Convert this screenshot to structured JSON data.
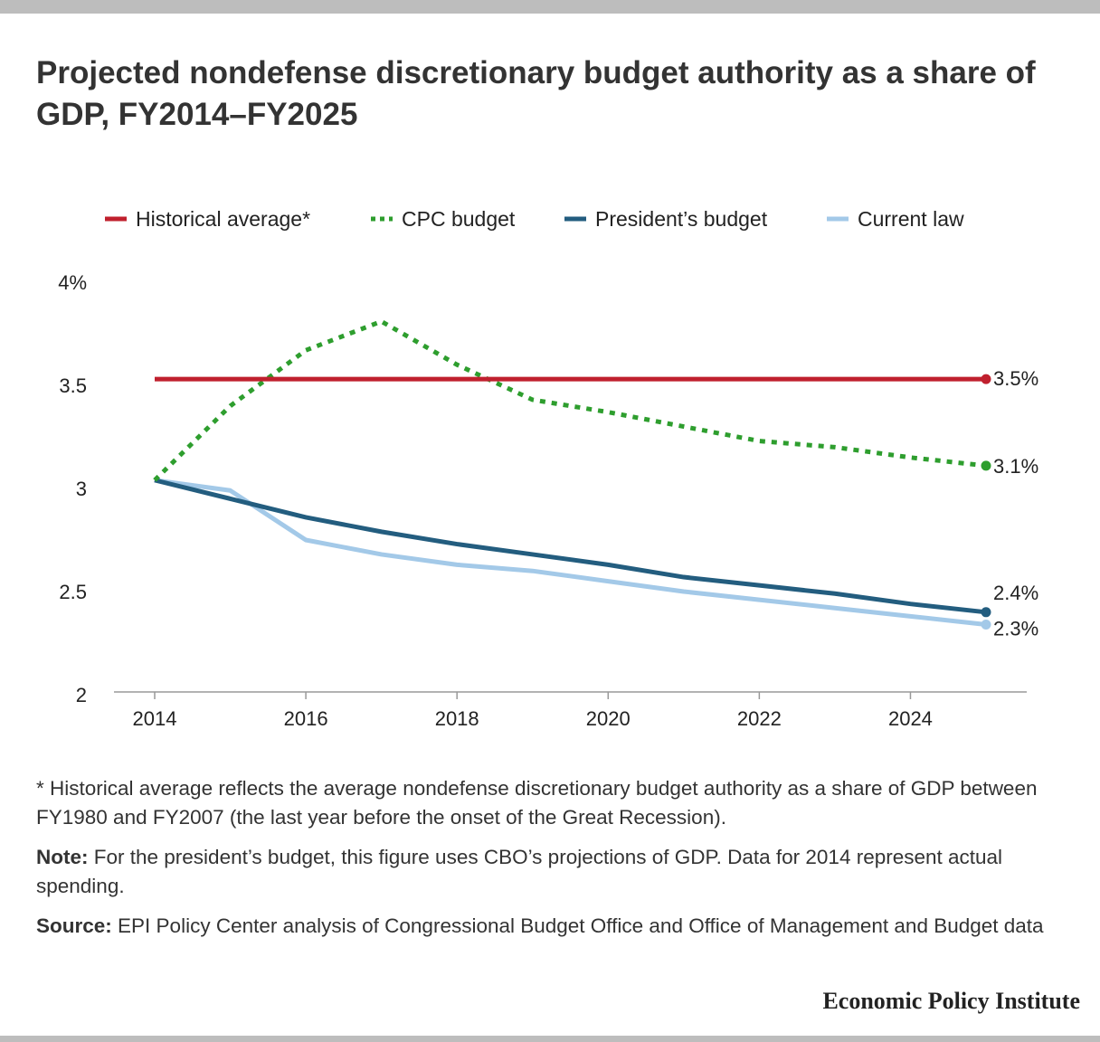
{
  "title": "Projected nondefense discretionary budget authority as a share of GDP, FY2014–FY2025",
  "chart_data": {
    "type": "line",
    "x": [
      2014,
      2015,
      2016,
      2017,
      2018,
      2019,
      2020,
      2021,
      2022,
      2023,
      2024,
      2025
    ],
    "xticks": [
      2014,
      2016,
      2018,
      2020,
      2022,
      2024
    ],
    "xtick_labels": [
      "2014",
      "2016",
      "2018",
      "2020",
      "2022",
      "2024"
    ],
    "ylim": [
      2,
      4
    ],
    "yticks": [
      2,
      2.5,
      3,
      3.5,
      4
    ],
    "ytick_labels": [
      "2",
      "2.5",
      "3",
      "3.5",
      "4%"
    ],
    "legend_position": "top",
    "grid": false,
    "series": [
      {
        "name": "Historical average*",
        "color": "#c0202e",
        "dash": "solid",
        "values": [
          3.53,
          3.53,
          3.53,
          3.53,
          3.53,
          3.53,
          3.53,
          3.53,
          3.53,
          3.53,
          3.53,
          3.53
        ],
        "end_label": "3.5%"
      },
      {
        "name": "CPC budget",
        "color": "#2e9e2e",
        "dash": "dotted",
        "values": [
          3.04,
          3.4,
          3.67,
          3.81,
          3.6,
          3.43,
          3.37,
          3.3,
          3.23,
          3.2,
          3.15,
          3.11
        ],
        "end_label": "3.1%"
      },
      {
        "name": "President’s budget",
        "color": "#235d7f",
        "dash": "solid",
        "values": [
          3.04,
          2.95,
          2.86,
          2.79,
          2.73,
          2.68,
          2.63,
          2.57,
          2.53,
          2.49,
          2.44,
          2.4
        ],
        "end_label": "2.4%"
      },
      {
        "name": "Current law",
        "color": "#a3c9e8",
        "dash": "solid",
        "values": [
          3.04,
          2.99,
          2.75,
          2.68,
          2.63,
          2.6,
          2.55,
          2.5,
          2.46,
          2.42,
          2.38,
          2.34
        ],
        "end_label": "2.3%"
      }
    ]
  },
  "notes": {
    "footnote": "* Historical average reflects the average nondefense discretionary budget authority as a share of GDP between FY1980 and FY2007 (the last year before the onset of the Great Recession).",
    "note_label": "Note:",
    "note_text": " For the president’s budget, this figure uses CBO’s projections of GDP. Data for 2014 represent actual spending.",
    "source_label": "Source:",
    "source_text": " EPI Policy Center analysis of Congressional Budget Office and Office of Management and Budget data"
  },
  "brand": "Economic Policy Institute"
}
